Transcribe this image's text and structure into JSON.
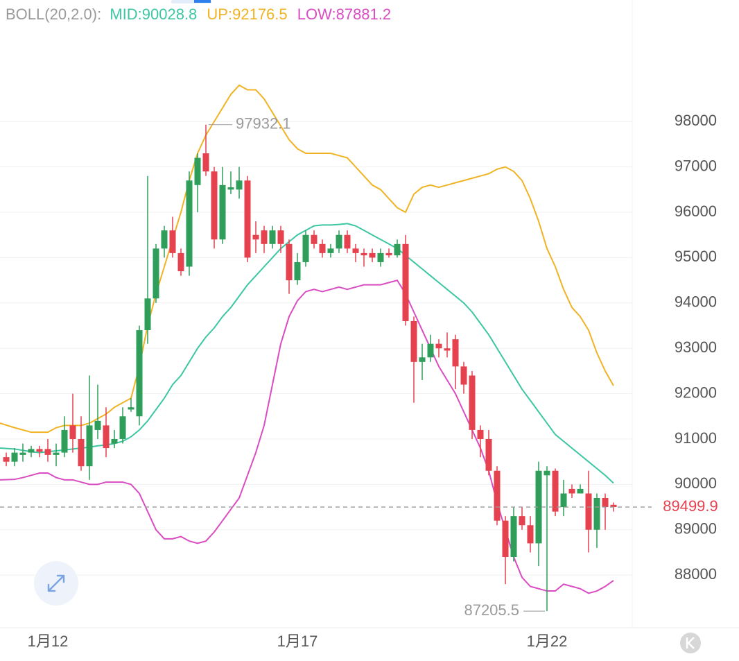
{
  "chart_data": {
    "type": "candlestick",
    "indicator": "BOLL(20,2.0):",
    "categories": [
      null,
      null,
      null,
      null,
      null,
      "1月12",
      null,
      null,
      null,
      null,
      null,
      null,
      null,
      null,
      null,
      null,
      null,
      null,
      null,
      null,
      null,
      null,
      null,
      null,
      null,
      null,
      null,
      null,
      null,
      null,
      null,
      null,
      null,
      null,
      null,
      "1月17",
      null,
      null,
      null,
      null,
      null,
      null,
      null,
      null,
      null,
      null,
      null,
      null,
      null,
      null,
      null,
      null,
      null,
      null,
      null,
      null,
      null,
      null,
      null,
      null,
      null,
      null,
      null,
      null,
      null,
      "1月22",
      null,
      null,
      null,
      null,
      null,
      null,
      null,
      null
    ],
    "candles": {
      "up_color": "#2f9e5a",
      "down_color": "#e5414f",
      "open": [
        90600,
        90500,
        90650,
        90700,
        90780,
        90780,
        90650,
        90700,
        91300,
        91000,
        90400,
        91200,
        91300,
        90900,
        91000,
        91650,
        91500,
        93400,
        94100,
        95200,
        95600,
        95100,
        94800,
        96600,
        97300,
        96900,
        95400,
        96500,
        96500,
        96700,
        95500,
        95600,
        95300,
        95600,
        95300,
        94500,
        94900,
        95500,
        95300,
        95100,
        95200,
        95500,
        95200,
        95100,
        95100,
        94900,
        95100,
        95050,
        95300,
        93600,
        92700,
        92800,
        93100,
        93000,
        93200,
        92600,
        92400,
        91200,
        91000,
        90300,
        89200,
        88400,
        89300,
        89100,
        88700,
        90200,
        90300,
        89500,
        89900,
        89800,
        89800,
        89000,
        89700,
        89550
      ],
      "high": [
        90700,
        90800,
        90900,
        90850,
        90850,
        91000,
        90900,
        91500,
        92000,
        91500,
        92400,
        92200,
        91700,
        91200,
        91700,
        91900,
        93500,
        96800,
        95300,
        95700,
        95900,
        95200,
        96900,
        97300,
        97932.1,
        97000,
        97000,
        96900,
        97000,
        96800,
        95800,
        95700,
        95700,
        95700,
        95400,
        95100,
        95600,
        95600,
        95400,
        95300,
        95600,
        95600,
        95300,
        95200,
        95200,
        95200,
        95200,
        95400,
        95500,
        93700,
        93100,
        93300,
        93200,
        93350,
        93300,
        92700,
        92500,
        91300,
        91200,
        90400,
        89300,
        89500,
        89500,
        89300,
        90500,
        90400,
        90350,
        90100,
        90000,
        90000,
        90300,
        89800,
        89800,
        89600
      ],
      "low": [
        90400,
        90400,
        90500,
        90600,
        90600,
        90500,
        90400,
        90600,
        90700,
        90300,
        90100,
        91000,
        90600,
        90800,
        90900,
        91600,
        91300,
        93100,
        94000,
        95000,
        95000,
        94600,
        94600,
        96000,
        96800,
        95200,
        95300,
        96400,
        96300,
        94900,
        95100,
        95100,
        95200,
        95100,
        94200,
        94400,
        94800,
        95200,
        95000,
        95000,
        95100,
        95100,
        94900,
        94800,
        94900,
        94800,
        95000,
        95000,
        93500,
        91800,
        92300,
        92700,
        92800,
        92800,
        92100,
        92000,
        91000,
        90600,
        90200,
        89100,
        87800,
        88300,
        89000,
        88500,
        88200,
        87205.5,
        89300,
        89300,
        89700,
        89800,
        88500,
        88600,
        89000,
        89400
      ],
      "close": [
        90500,
        90700,
        90700,
        90780,
        90720,
        90650,
        90700,
        91200,
        91000,
        90400,
        91300,
        91400,
        90800,
        91000,
        91500,
        91700,
        93400,
        94100,
        95200,
        95600,
        95100,
        94700,
        96700,
        97200,
        96900,
        95400,
        96600,
        96550,
        96700,
        95000,
        95400,
        95300,
        95600,
        95300,
        94500,
        94900,
        95500,
        95300,
        95100,
        95200,
        95500,
        95200,
        95100,
        95050,
        95000,
        95100,
        95050,
        95300,
        93600,
        92700,
        92800,
        93100,
        93000,
        92950,
        92600,
        92200,
        91200,
        91000,
        90300,
        89200,
        88400,
        89300,
        89100,
        88700,
        90300,
        90300,
        89400,
        89800,
        89800,
        89900,
        89000,
        89700,
        89500,
        89499.9
      ]
    },
    "series": [
      {
        "name": "MID:",
        "color": "#3cc7a2",
        "values": [
          90800,
          90780,
          90750,
          90720,
          90700,
          90720,
          90740,
          90760,
          90780,
          90800,
          90820,
          90850,
          90870,
          90900,
          90950,
          91050,
          91200,
          91400,
          91650,
          91900,
          92200,
          92400,
          92700,
          93000,
          93250,
          93450,
          93700,
          93900,
          94150,
          94400,
          94600,
          94800,
          95000,
          95200,
          95350,
          95500,
          95600,
          95700,
          95720,
          95720,
          95730,
          95750,
          95700,
          95600,
          95500,
          95400,
          95300,
          95200,
          95050,
          94900,
          94750,
          94600,
          94450,
          94300,
          94150,
          94000,
          93800,
          93550,
          93300,
          93000,
          92700,
          92400,
          92100,
          91850,
          91600,
          91350,
          91100,
          90950,
          90800,
          90650,
          90500,
          90350,
          90200,
          90028.8
        ]
      },
      {
        "name": "UP:",
        "color": "#f0b323",
        "values": [
          91350,
          91250,
          91200,
          91150,
          91150,
          91150,
          91250,
          91300,
          91300,
          91300,
          91350,
          91450,
          91550,
          91700,
          91800,
          91900,
          92600,
          93500,
          94200,
          94800,
          95400,
          96000,
          96700,
          97300,
          97700,
          98000,
          98300,
          98600,
          98800,
          98700,
          98700,
          98500,
          98200,
          97900,
          97600,
          97400,
          97300,
          97300,
          97300,
          97300,
          97250,
          97200,
          97000,
          96800,
          96600,
          96500,
          96300,
          96100,
          96000,
          96400,
          96550,
          96600,
          96550,
          96600,
          96650,
          96700,
          96750,
          96800,
          96850,
          96950,
          97000,
          96900,
          96700,
          96300,
          95800,
          95200,
          94800,
          94300,
          93900,
          93700,
          93400,
          92900,
          92500,
          92176.5
        ]
      },
      {
        "name": "LOW:",
        "color": "#d94cc2",
        "values": [
          90100,
          90110,
          90150,
          90200,
          90250,
          90250,
          90150,
          90100,
          90100,
          90050,
          90000,
          90000,
          90050,
          90050,
          90050,
          90000,
          89800,
          89400,
          89000,
          88800,
          88800,
          88850,
          88750,
          88700,
          88750,
          88950,
          89200,
          89450,
          89700,
          90200,
          90700,
          91300,
          92200,
          93100,
          93700,
          94050,
          94250,
          94300,
          94250,
          94300,
          94350,
          94300,
          94350,
          94400,
          94400,
          94400,
          94450,
          94500,
          94200,
          93800,
          93400,
          93000,
          92600,
          92300,
          92000,
          91600,
          91200,
          90800,
          90300,
          89600,
          89000,
          88400,
          87950,
          87750,
          87700,
          87650,
          87650,
          87800,
          87750,
          87700,
          87600,
          87650,
          87750,
          87881.2
        ]
      }
    ],
    "ylim": [
      86840,
      100680
    ],
    "yticks": [
      88000,
      89000,
      90000,
      91000,
      92000,
      93000,
      94000,
      95000,
      96000,
      97000,
      98000
    ],
    "grid": true,
    "last_price_line": true
  }
}
